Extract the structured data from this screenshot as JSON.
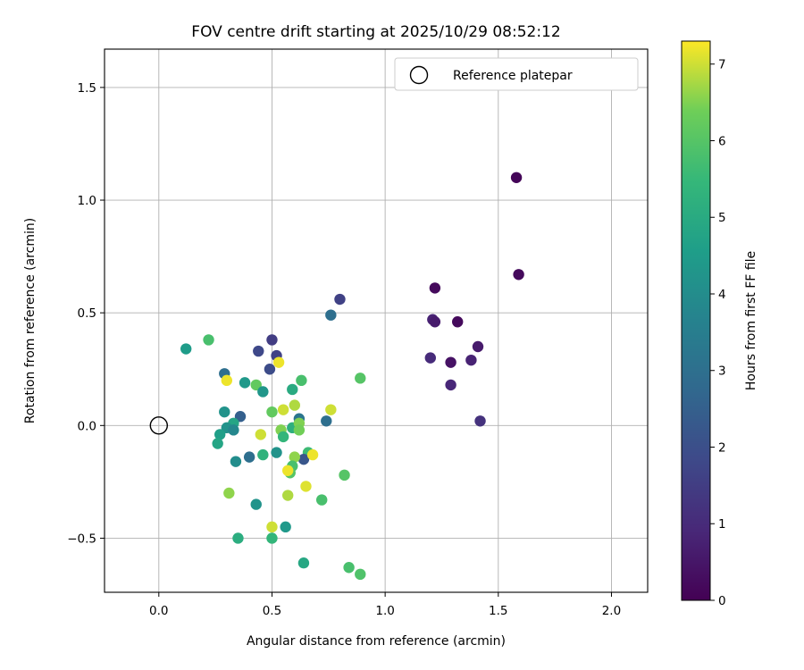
{
  "chart_data": {
    "type": "scatter",
    "title": "FOV centre drift starting at 2025/10/29 08:52:12",
    "xlabel": "Angular distance from reference (arcmin)",
    "ylabel": "Rotation from reference (arcmin)",
    "xlim": [
      -0.24,
      2.16
    ],
    "ylim": [
      -0.74,
      1.67
    ],
    "xticks": [
      0.0,
      0.5,
      1.0,
      1.5,
      2.0
    ],
    "xtick_labels": [
      "0.0",
      "0.5",
      "1.0",
      "1.5",
      "2.0"
    ],
    "yticks": [
      -0.5,
      0.0,
      0.5,
      1.0,
      1.5
    ],
    "ytick_labels": [
      "−0.5",
      "0.0",
      "0.5",
      "1.0",
      "1.5"
    ],
    "grid": true,
    "legend": {
      "location": "top-right",
      "label": "Reference platepar"
    },
    "reference_point": {
      "x": 0.0,
      "y": 0.0
    },
    "colorbar": {
      "label": "Hours from first FF file",
      "colormap": "viridis",
      "range": [
        0,
        7.3
      ],
      "ticks": [
        0,
        1,
        2,
        3,
        4,
        5,
        6,
        7
      ],
      "tick_labels": [
        "0",
        "1",
        "2",
        "3",
        "4",
        "5",
        "6",
        "7"
      ]
    },
    "points": [
      {
        "x": 1.58,
        "y": 1.1,
        "c": 0.1
      },
      {
        "x": 1.59,
        "y": 0.67,
        "c": 0.2
      },
      {
        "x": 1.22,
        "y": 0.61,
        "c": 0.2
      },
      {
        "x": 1.32,
        "y": 0.46,
        "c": 0.2
      },
      {
        "x": 1.29,
        "y": 0.28,
        "c": 0.4
      },
      {
        "x": 1.21,
        "y": 0.47,
        "c": 0.8
      },
      {
        "x": 1.22,
        "y": 0.46,
        "c": 0.6
      },
      {
        "x": 1.41,
        "y": 0.35,
        "c": 0.6
      },
      {
        "x": 1.38,
        "y": 0.29,
        "c": 0.8
      },
      {
        "x": 1.2,
        "y": 0.3,
        "c": 1.0
      },
      {
        "x": 1.29,
        "y": 0.18,
        "c": 0.9
      },
      {
        "x": 1.42,
        "y": 0.02,
        "c": 1.2
      },
      {
        "x": 0.8,
        "y": 0.56,
        "c": 1.6
      },
      {
        "x": 0.76,
        "y": 0.49,
        "c": 3.0
      },
      {
        "x": 0.5,
        "y": 0.38,
        "c": 1.5
      },
      {
        "x": 0.44,
        "y": 0.33,
        "c": 1.8
      },
      {
        "x": 0.52,
        "y": 0.31,
        "c": 1.6
      },
      {
        "x": 0.49,
        "y": 0.25,
        "c": 1.9
      },
      {
        "x": 0.29,
        "y": 0.23,
        "c": 3.0
      },
      {
        "x": 0.12,
        "y": 0.34,
        "c": 4.5
      },
      {
        "x": 0.22,
        "y": 0.38,
        "c": 5.8
      },
      {
        "x": 0.53,
        "y": 0.28,
        "c": 7.2
      },
      {
        "x": 0.3,
        "y": 0.2,
        "c": 7.2
      },
      {
        "x": 0.38,
        "y": 0.19,
        "c": 4.4
      },
      {
        "x": 0.43,
        "y": 0.18,
        "c": 6.2
      },
      {
        "x": 0.46,
        "y": 0.15,
        "c": 4.3
      },
      {
        "x": 0.59,
        "y": 0.16,
        "c": 5.0
      },
      {
        "x": 0.63,
        "y": 0.2,
        "c": 5.8
      },
      {
        "x": 0.89,
        "y": 0.21,
        "c": 6.0
      },
      {
        "x": 0.6,
        "y": 0.09,
        "c": 6.8
      },
      {
        "x": 0.55,
        "y": 0.07,
        "c": 7.0
      },
      {
        "x": 0.29,
        "y": 0.06,
        "c": 4.2
      },
      {
        "x": 0.36,
        "y": 0.04,
        "c": 2.5
      },
      {
        "x": 0.5,
        "y": 0.06,
        "c": 6.2
      },
      {
        "x": 0.62,
        "y": 0.03,
        "c": 3.2
      },
      {
        "x": 0.74,
        "y": 0.02,
        "c": 3.0
      },
      {
        "x": 0.76,
        "y": 0.07,
        "c": 7.0
      },
      {
        "x": 0.33,
        "y": 0.01,
        "c": 4.8
      },
      {
        "x": 0.3,
        "y": -0.01,
        "c": 4.2
      },
      {
        "x": 0.33,
        "y": -0.02,
        "c": 3.8
      },
      {
        "x": 0.27,
        "y": -0.04,
        "c": 4.6
      },
      {
        "x": 0.26,
        "y": -0.08,
        "c": 4.8
      },
      {
        "x": 0.54,
        "y": -0.02,
        "c": 6.5
      },
      {
        "x": 0.59,
        "y": -0.01,
        "c": 5.2
      },
      {
        "x": 0.62,
        "y": 0.01,
        "c": 6.5
      },
      {
        "x": 0.62,
        "y": -0.02,
        "c": 6.4
      },
      {
        "x": 0.55,
        "y": -0.05,
        "c": 5.4
      },
      {
        "x": 0.45,
        "y": -0.04,
        "c": 7.0
      },
      {
        "x": 0.66,
        "y": -0.12,
        "c": 5.6
      },
      {
        "x": 0.64,
        "y": -0.15,
        "c": 2.2
      },
      {
        "x": 0.68,
        "y": -0.13,
        "c": 7.2
      },
      {
        "x": 0.6,
        "y": -0.14,
        "c": 6.6
      },
      {
        "x": 0.52,
        "y": -0.12,
        "c": 4.2
      },
      {
        "x": 0.46,
        "y": -0.13,
        "c": 5.3
      },
      {
        "x": 0.4,
        "y": -0.14,
        "c": 3.0
      },
      {
        "x": 0.34,
        "y": -0.16,
        "c": 4.0
      },
      {
        "x": 0.59,
        "y": -0.18,
        "c": 5.8
      },
      {
        "x": 0.58,
        "y": -0.21,
        "c": 6.0
      },
      {
        "x": 0.57,
        "y": -0.2,
        "c": 7.2
      },
      {
        "x": 0.65,
        "y": -0.27,
        "c": 7.1
      },
      {
        "x": 0.82,
        "y": -0.22,
        "c": 6.0
      },
      {
        "x": 0.31,
        "y": -0.3,
        "c": 6.6
      },
      {
        "x": 0.57,
        "y": -0.31,
        "c": 6.8
      },
      {
        "x": 0.72,
        "y": -0.33,
        "c": 5.8
      },
      {
        "x": 0.43,
        "y": -0.35,
        "c": 4.2
      },
      {
        "x": 0.5,
        "y": -0.45,
        "c": 7.0
      },
      {
        "x": 0.56,
        "y": -0.45,
        "c": 4.4
      },
      {
        "x": 0.35,
        "y": -0.5,
        "c": 5.1
      },
      {
        "x": 0.5,
        "y": -0.5,
        "c": 5.4
      },
      {
        "x": 0.64,
        "y": -0.61,
        "c": 4.9
      },
      {
        "x": 0.84,
        "y": -0.63,
        "c": 5.8
      },
      {
        "x": 0.89,
        "y": -0.66,
        "c": 5.9
      }
    ]
  }
}
